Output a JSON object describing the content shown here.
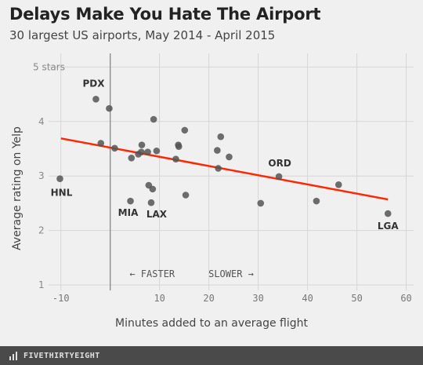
{
  "header": {
    "title": "Delays Make You Hate The Airport",
    "subtitle": "30 largest US airports, May 2014 - April 2015"
  },
  "footer": {
    "brand": "FIVETHIRTYEIGHT"
  },
  "colors": {
    "background": "#f0f0f0",
    "grid": "#d6d6d6",
    "point": "#555555",
    "trend": "#ff2700",
    "zero_line": "#888888",
    "footer_bg": "#4a4a4a"
  },
  "chart_data": {
    "type": "scatter",
    "xlabel": "Minutes added to an average flight",
    "ylabel": "Average rating on Yelp",
    "xlim": [
      -12.5,
      61.5
    ],
    "ylim": [
      0.9,
      5.25
    ],
    "x_ticks": [
      -10,
      0,
      10,
      20,
      30,
      40,
      50,
      60
    ],
    "x_tick_labels": [
      "-10",
      "",
      "10",
      "20",
      "30",
      "40",
      "50",
      "60"
    ],
    "y_ticks": [
      1,
      2,
      3,
      4,
      5
    ],
    "y_tick_labels": [
      "1",
      "2",
      "3",
      "4",
      "5 stars"
    ],
    "grid": true,
    "zero_line_x": 0,
    "points": [
      {
        "x": -10.2,
        "y": 2.95,
        "label": "HNL"
      },
      {
        "x": -2.9,
        "y": 4.41,
        "label": "PDX"
      },
      {
        "x": -0.2,
        "y": 4.24,
        "label": ""
      },
      {
        "x": -1.9,
        "y": 3.6,
        "label": ""
      },
      {
        "x": 0.9,
        "y": 3.51,
        "label": ""
      },
      {
        "x": 4.1,
        "y": 2.54,
        "label": "MIA"
      },
      {
        "x": 4.3,
        "y": 3.33,
        "label": ""
      },
      {
        "x": 5.7,
        "y": 3.4,
        "label": ""
      },
      {
        "x": 6.3,
        "y": 3.44,
        "label": ""
      },
      {
        "x": 6.4,
        "y": 3.57,
        "label": ""
      },
      {
        "x": 7.6,
        "y": 3.44,
        "label": ""
      },
      {
        "x": 7.8,
        "y": 2.83,
        "label": ""
      },
      {
        "x": 8.3,
        "y": 2.51,
        "label": "LAX"
      },
      {
        "x": 8.6,
        "y": 2.76,
        "label": ""
      },
      {
        "x": 8.8,
        "y": 4.04,
        "label": ""
      },
      {
        "x": 9.4,
        "y": 3.46,
        "label": ""
      },
      {
        "x": 13.3,
        "y": 3.31,
        "label": ""
      },
      {
        "x": 13.8,
        "y": 3.57,
        "label": ""
      },
      {
        "x": 13.9,
        "y": 3.54,
        "label": ""
      },
      {
        "x": 15.1,
        "y": 3.84,
        "label": ""
      },
      {
        "x": 15.3,
        "y": 2.65,
        "label": ""
      },
      {
        "x": 21.7,
        "y": 3.47,
        "label": ""
      },
      {
        "x": 21.9,
        "y": 3.14,
        "label": ""
      },
      {
        "x": 22.4,
        "y": 3.72,
        "label": ""
      },
      {
        "x": 24.1,
        "y": 3.35,
        "label": ""
      },
      {
        "x": 30.5,
        "y": 2.5,
        "label": ""
      },
      {
        "x": 34.2,
        "y": 2.99,
        "label": "ORD"
      },
      {
        "x": 41.8,
        "y": 2.54,
        "label": ""
      },
      {
        "x": 46.3,
        "y": 2.84,
        "label": ""
      },
      {
        "x": 56.3,
        "y": 2.31,
        "label": "LGA"
      }
    ],
    "trend_line": {
      "x": [
        -10,
        56.3
      ],
      "y": [
        3.69,
        2.57
      ]
    },
    "annotations": [
      {
        "text": "←  FASTER",
        "x": 8.5,
        "y": 1.2
      },
      {
        "text": "SLOWER  →",
        "x": 24.5,
        "y": 1.2
      }
    ]
  }
}
